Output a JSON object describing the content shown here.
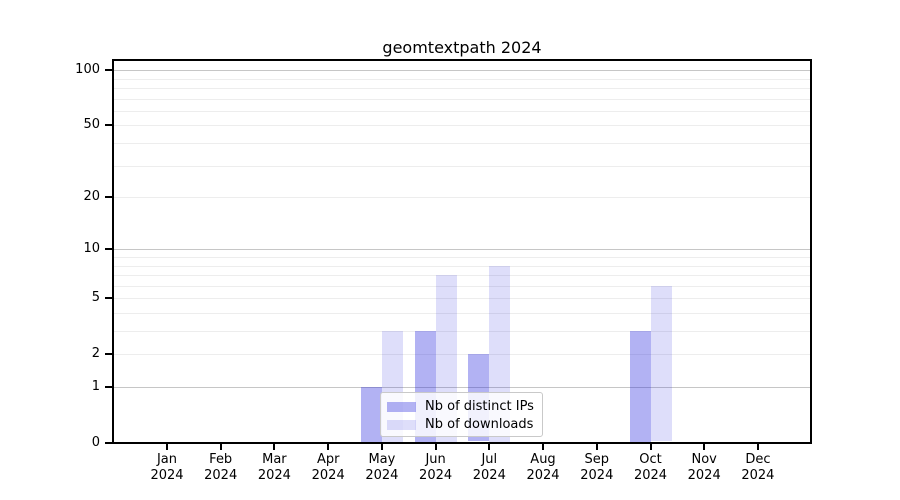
{
  "figure": {
    "title": "geomtextpath 2024"
  },
  "chart_data": {
    "type": "bar",
    "title": "geomtextpath 2024",
    "months": [
      "Jan",
      "Feb",
      "Mar",
      "Apr",
      "May",
      "Jun",
      "Jul",
      "Aug",
      "Sep",
      "Oct",
      "Nov",
      "Dec"
    ],
    "year_label": "2024",
    "series": [
      {
        "name": "Nb of distinct IPs",
        "color": "rgba(34,34,221,0.35)",
        "values": [
          0,
          0,
          0,
          0,
          1,
          3,
          2,
          0,
          0,
          3,
          0,
          0
        ]
      },
      {
        "name": "Nb of downloads",
        "color": "rgba(34,34,221,0.15)",
        "values": [
          0,
          0,
          0,
          0,
          3,
          7,
          8,
          0,
          0,
          6,
          0,
          0
        ]
      }
    ],
    "y_scale": "log1p",
    "y_ticks": [
      0,
      1,
      2,
      5,
      10,
      20,
      50,
      100
    ],
    "y_range": [
      0,
      110
    ],
    "grid": {
      "decade_lines": [
        1,
        10,
        100
      ],
      "minor_lines": [
        2,
        3,
        4,
        5,
        6,
        7,
        8,
        9,
        20,
        30,
        40,
        50,
        60,
        70,
        80,
        90
      ],
      "decade_color": "#c6c6c6",
      "minor_color": "#ededed"
    },
    "legend": {
      "location": "lower center",
      "entries": [
        "Nb of distinct IPs",
        "Nb of downloads"
      ]
    }
  }
}
